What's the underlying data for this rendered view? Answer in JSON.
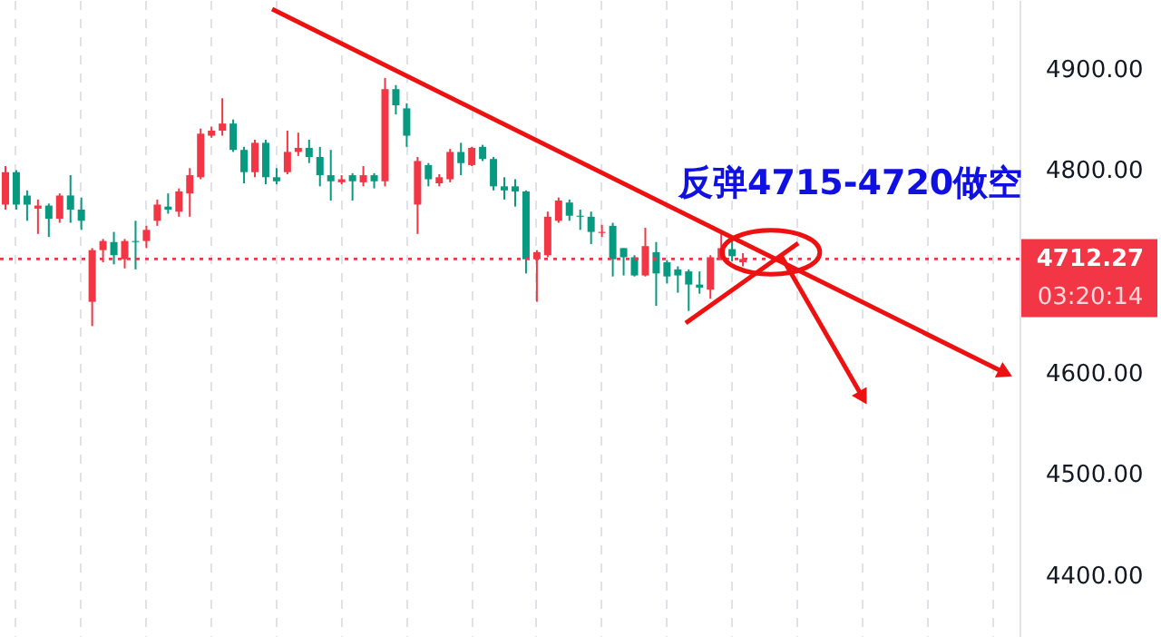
{
  "chart_data": {
    "type": "candlestick",
    "categories": [
      null,
      null,
      null,
      null,
      null,
      null,
      null,
      null,
      null,
      null,
      null,
      null,
      null,
      null,
      null,
      null,
      null,
      null,
      null,
      null,
      null,
      null,
      null,
      null,
      null,
      null,
      null,
      null,
      null,
      null,
      null,
      null,
      null,
      null,
      null,
      null,
      null,
      null,
      null,
      null,
      null,
      null,
      null,
      null,
      null,
      null,
      null,
      null,
      null,
      null,
      null,
      null,
      null,
      null,
      null,
      null,
      null,
      null,
      null,
      null,
      null,
      null,
      null,
      null,
      null,
      null,
      null,
      null,
      null,
      null,
      null,
      null,
      null,
      null,
      null,
      null,
      null,
      null,
      null,
      null,
      null,
      null,
      null,
      null,
      null,
      null,
      null,
      null,
      null,
      null,
      null,
      null,
      null,
      null
    ],
    "ohlc": [
      [
        4766,
        4804,
        4761,
        4798
      ],
      [
        4798,
        4800,
        4761,
        4766
      ],
      [
        4775,
        4780,
        4750,
        4766
      ],
      [
        4762,
        4771,
        4737,
        4765
      ],
      [
        4765,
        4767,
        4734,
        4752
      ],
      [
        4752,
        4777,
        4748,
        4775
      ],
      [
        4775,
        4795,
        4748,
        4761
      ],
      [
        4761,
        4773,
        4741,
        4750
      ],
      [
        4670,
        4723,
        4646,
        4721
      ],
      [
        4721,
        4732,
        4709,
        4730
      ],
      [
        4729,
        4739,
        4707,
        4716
      ],
      [
        4712,
        4732,
        4703,
        4730
      ],
      [
        4730,
        4750,
        4702,
        4729
      ],
      [
        4730,
        4745,
        4723,
        4741
      ],
      [
        4750,
        4771,
        4745,
        4766
      ],
      [
        4764,
        4777,
        4757,
        4761
      ],
      [
        4759,
        4782,
        4754,
        4779
      ],
      [
        4777,
        4802,
        4754,
        4795
      ],
      [
        4793,
        4841,
        4791,
        4836
      ],
      [
        4834,
        4843,
        4832,
        4839
      ],
      [
        4839,
        4871,
        4834,
        4846
      ],
      [
        4846,
        4850,
        4818,
        4820
      ],
      [
        4820,
        4823,
        4787,
        4798
      ],
      [
        4798,
        4830,
        4793,
        4827
      ],
      [
        4827,
        4830,
        4786,
        4793
      ],
      [
        4793,
        4802,
        4786,
        4789
      ],
      [
        4798,
        4839,
        4796,
        4818
      ],
      [
        4818,
        4837,
        4814,
        4822
      ],
      [
        4822,
        4830,
        4807,
        4813
      ],
      [
        4813,
        4823,
        4784,
        4795
      ],
      [
        4795,
        4820,
        4770,
        4789
      ],
      [
        4788,
        4795,
        4786,
        4791
      ],
      [
        4795,
        4797,
        4770,
        4789
      ],
      [
        4788,
        4804,
        4784,
        4795
      ],
      [
        4795,
        4797,
        4782,
        4789
      ],
      [
        4789,
        4891,
        4784,
        4880
      ],
      [
        4880,
        4884,
        4855,
        4864
      ],
      [
        4861,
        4866,
        4823,
        4834
      ],
      [
        4766,
        4813,
        4737,
        4809
      ],
      [
        4805,
        4807,
        4784,
        4791
      ],
      [
        4787,
        4796,
        4784,
        4793
      ],
      [
        4791,
        4821,
        4788,
        4818
      ],
      [
        4818,
        4827,
        4795,
        4807
      ],
      [
        4805,
        4823,
        4804,
        4822
      ],
      [
        4823,
        4825,
        4809,
        4811
      ],
      [
        4811,
        4813,
        4780,
        4784
      ],
      [
        4784,
        4793,
        4771,
        4780
      ],
      [
        4784,
        4791,
        4764,
        4779
      ],
      [
        4779,
        4780,
        4698,
        4712
      ],
      [
        4712,
        4721,
        4670,
        4719
      ],
      [
        4716,
        4759,
        4714,
        4754
      ],
      [
        4750,
        4773,
        4748,
        4770
      ],
      [
        4768,
        4771,
        4750,
        4755
      ],
      [
        4755,
        4761,
        4741,
        4754
      ],
      [
        4754,
        4759,
        4727,
        4739
      ],
      [
        4738,
        4746,
        4734,
        4739
      ],
      [
        4745,
        4748,
        4695,
        4712
      ],
      [
        4723,
        4723,
        4696,
        4714
      ],
      [
        4714,
        4716,
        4695,
        4696
      ],
      [
        4696,
        4743,
        4695,
        4725
      ],
      [
        4719,
        4729,
        4666,
        4698
      ],
      [
        4709,
        4711,
        4688,
        4695
      ],
      [
        4702,
        4705,
        4679,
        4696
      ],
      [
        4700,
        4702,
        4661,
        4687
      ],
      [
        4687,
        4700,
        4678,
        4684
      ],
      [
        4682,
        4716,
        4673,
        4714
      ],
      [
        4712,
        4739,
        4711,
        4723
      ],
      [
        4722,
        4730,
        4710,
        4715
      ],
      [
        4709,
        4718,
        4705,
        4712.27
      ],
      null,
      null,
      null,
      null,
      null,
      null,
      null,
      null,
      null,
      null,
      null,
      null,
      null,
      null,
      null,
      null,
      null,
      null,
      null,
      null,
      null,
      null,
      null,
      null,
      null
    ],
    "colors": [
      "#f23645",
      "#089981",
      "#089981",
      "#f23645",
      "#089981",
      "#f23645",
      "#089981",
      "#089981",
      "#f23645",
      "#f23645",
      "#089981",
      "#f23645",
      "#089981",
      "#f23645",
      "#f23645",
      "#089981",
      "#f23645",
      "#f23645",
      "#f23645",
      "#f23645",
      "#f23645",
      "#089981",
      "#089981",
      "#f23645",
      "#089981",
      "#089981",
      "#f23645",
      "#f23645",
      "#089981",
      "#089981",
      "#089981",
      "#f23645",
      "#089981",
      "#f23645",
      "#089981",
      "#f23645",
      "#089981",
      "#089981",
      "#f23645",
      "#089981",
      "#f23645",
      "#f23645",
      "#089981",
      "#f23645",
      "#089981",
      "#089981",
      "#089981",
      "#089981",
      "#089981",
      "#f23645",
      "#f23645",
      "#f23645",
      "#089981",
      "#089981",
      "#089981",
      "#f23645",
      "#089981",
      "#089981",
      "#089981",
      "#f23645",
      "#089981",
      "#089981",
      "#089981",
      "#089981",
      "#089981",
      "#f23645",
      "#f23645",
      "#089981",
      "#f23645",
      null,
      null,
      null,
      null,
      null,
      null,
      null,
      null,
      null,
      null,
      null,
      null,
      null,
      null,
      null,
      null,
      null,
      null,
      null,
      null,
      null,
      null,
      null,
      null,
      null
    ],
    "ylim": [
      4339,
      4968
    ],
    "yticks": [
      {
        "value": 4400,
        "label": "4400.00"
      },
      {
        "value": 4500,
        "label": "4500.00"
      },
      {
        "value": 4600,
        "label": "4600.00"
      },
      {
        "value": 4800,
        "label": "4800.00"
      },
      {
        "value": 4900,
        "label": "4900.00"
      }
    ],
    "grid": "x",
    "tick_labels": "y",
    "ref_lines": [
      {
        "axis": "y",
        "value": 4712.27,
        "label": "4712.27",
        "color": "#f23645",
        "line_style": "dotted"
      }
    ],
    "annotations": [
      "反弹4715-4720做空",
      "03:20:14"
    ]
  }
}
